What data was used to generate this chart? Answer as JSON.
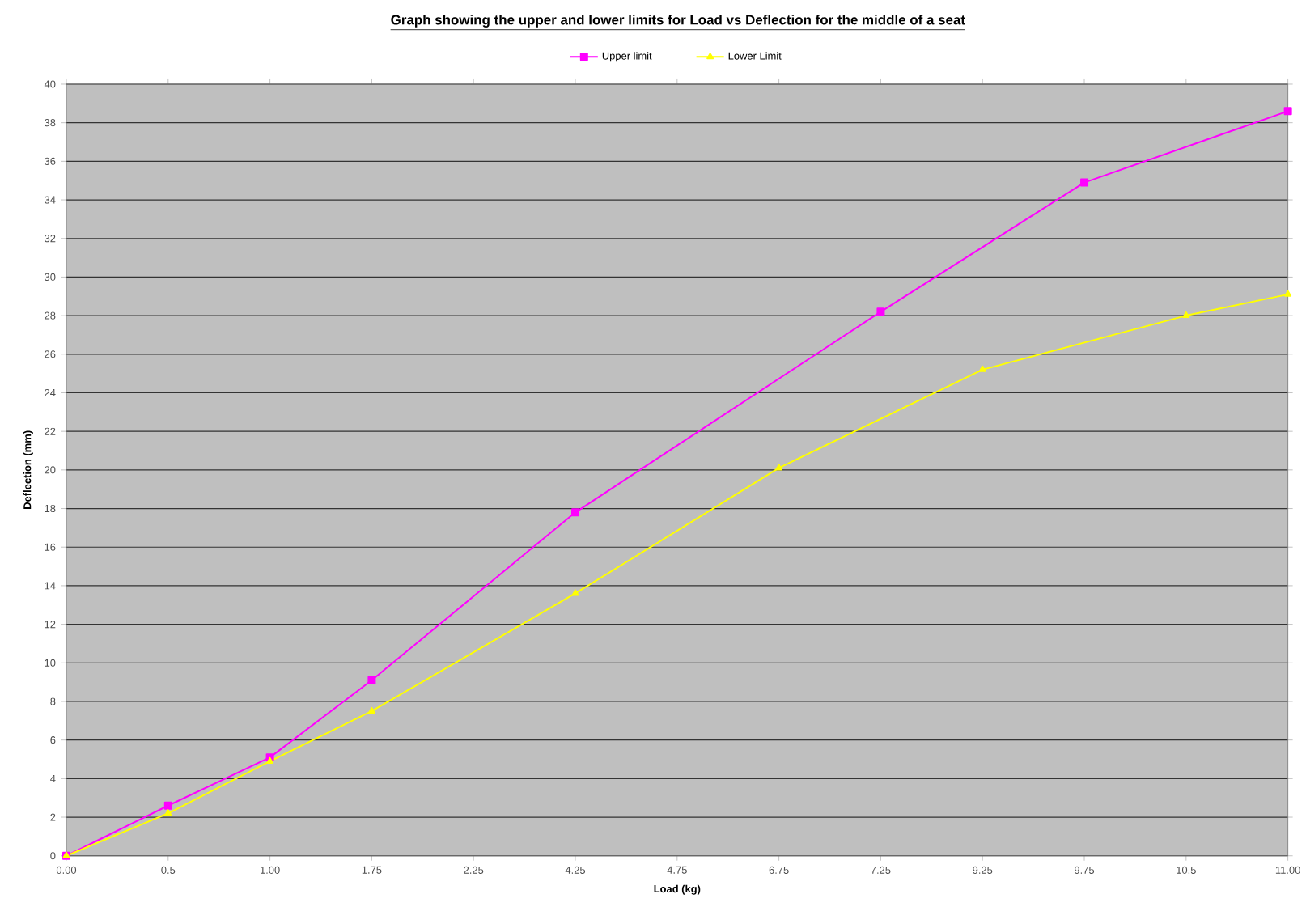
{
  "chart_data": {
    "type": "line",
    "title": "Graph showing the upper and lower limits for Load vs Deflection for the middle of a seat",
    "xlabel": "Load (kg)",
    "ylabel": "Deflection (mm)",
    "categories": [
      "0.00",
      "0.5",
      "1.00",
      "1.75",
      "2.25",
      "4.25",
      "4.75",
      "6.75",
      "7.25",
      "9.25",
      "9.75",
      "10.5",
      "11.00"
    ],
    "series": [
      {
        "name": "Upper limit",
        "color": "#ff00ff",
        "marker": "square",
        "values": [
          0,
          2.6,
          5.1,
          9.1,
          null,
          17.8,
          null,
          null,
          28.2,
          null,
          34.9,
          null,
          38.6
        ]
      },
      {
        "name": "Lower Limit",
        "color": "#ffff00",
        "marker": "triangle",
        "values": [
          0,
          2.2,
          4.9,
          7.5,
          null,
          13.6,
          null,
          20.1,
          null,
          25.2,
          null,
          28.0,
          29.1
        ]
      }
    ],
    "ylim": [
      0,
      40
    ],
    "yticks": [
      0,
      2,
      4,
      6,
      8,
      10,
      12,
      14,
      16,
      18,
      20,
      22,
      24,
      26,
      28,
      30,
      32,
      34,
      36,
      38,
      40
    ],
    "grid": "y",
    "legend": "top",
    "line_style": "solid"
  }
}
